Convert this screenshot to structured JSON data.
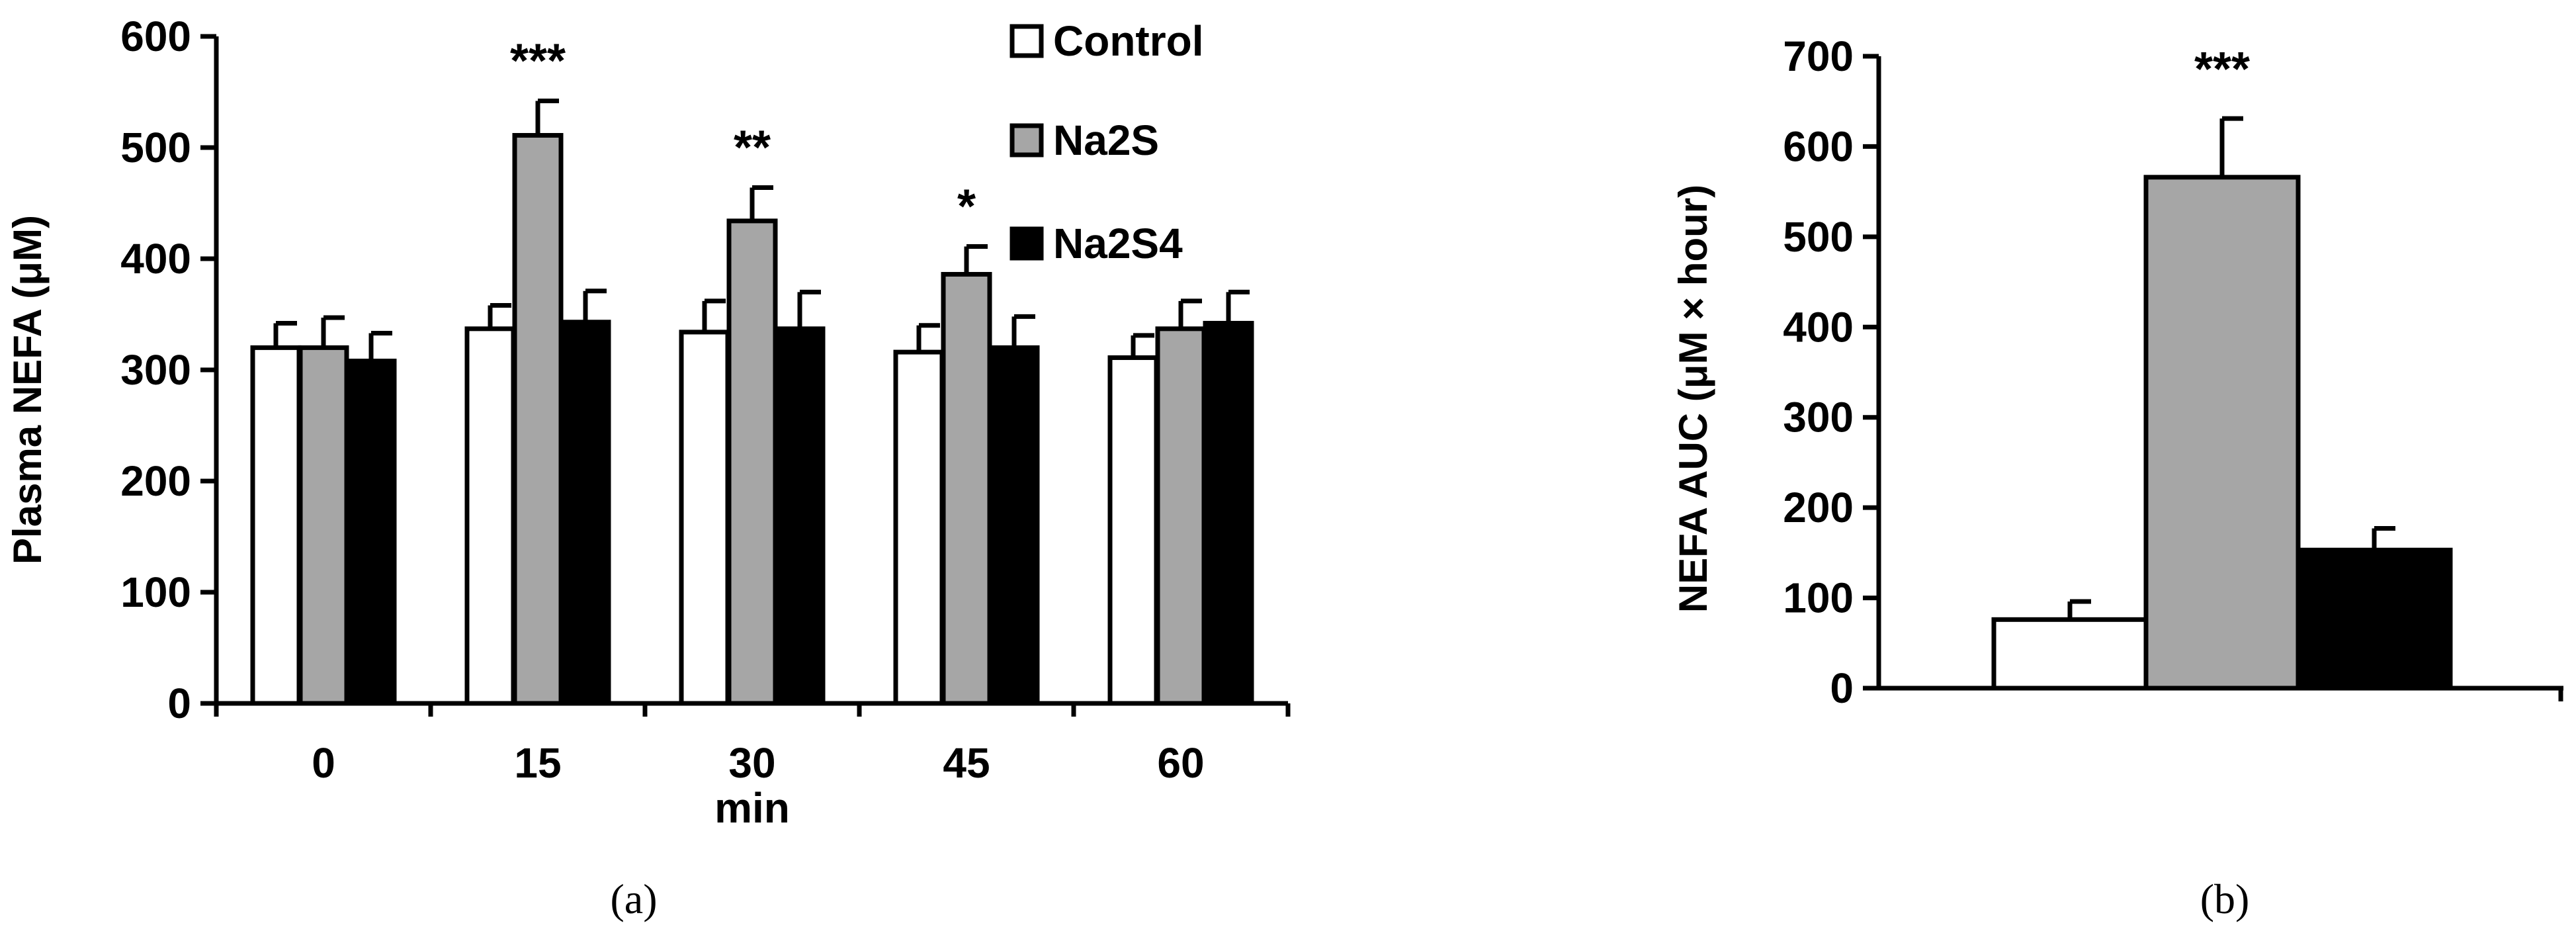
{
  "colors": {
    "Control": "#ffffff",
    "Na2S": "#a6a6a6",
    "Na2S4": "#000000",
    "stroke": "#000000"
  },
  "chart_data": [
    {
      "type": "bar",
      "panel_label": "(a)",
      "xlabel": "min",
      "ylabel": "Plasma NEFA (μM)",
      "ylim": [
        0,
        600
      ],
      "yticks": [
        0,
        100,
        200,
        300,
        400,
        500,
        600
      ],
      "categories": [
        "0",
        "15",
        "30",
        "45",
        "60"
      ],
      "legend": {
        "placement": "top-right",
        "entries": [
          "Control",
          "Na2S",
          "Na2S4"
        ]
      },
      "series": [
        {
          "name": "Control",
          "values": [
            320,
            337,
            334,
            316,
            311
          ],
          "errors": [
            22,
            21,
            28,
            24,
            20
          ]
        },
        {
          "name": "Na2S",
          "values": [
            320,
            511,
            434,
            386,
            337
          ],
          "errors": [
            27,
            31,
            30,
            25,
            25
          ]
        },
        {
          "name": "Na2S4",
          "values": [
            308,
            343,
            337,
            320,
            342
          ],
          "errors": [
            25,
            28,
            33,
            28,
            28
          ]
        }
      ],
      "annotations": [
        {
          "category": "15",
          "text": "***"
        },
        {
          "category": "30",
          "text": "**"
        },
        {
          "category": "45",
          "text": "*"
        }
      ]
    },
    {
      "type": "bar",
      "panel_label": "(b)",
      "xlabel": "",
      "ylabel": "NEFA  AUC (μM × hour)",
      "ylim": [
        0,
        700
      ],
      "yticks": [
        0,
        100,
        200,
        300,
        400,
        500,
        600,
        700
      ],
      "categories": [
        "Control",
        "Na2S",
        "Na2S4"
      ],
      "values": [
        76,
        566,
        153
      ],
      "errors": [
        20,
        65,
        24
      ],
      "annotations": [
        {
          "category": "Na2S",
          "text": "***"
        }
      ]
    }
  ]
}
